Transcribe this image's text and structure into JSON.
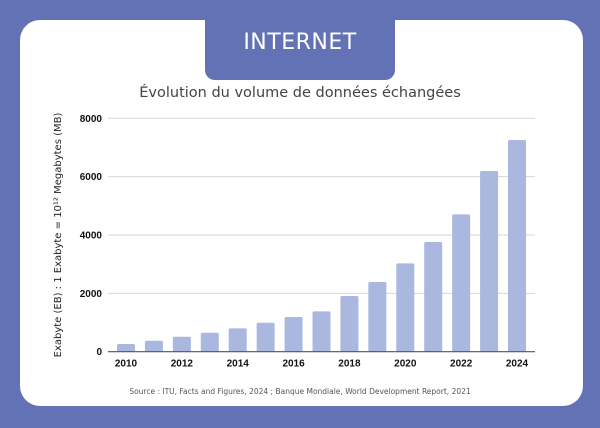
{
  "header": {
    "tab_title": "INTERNET"
  },
  "chart_data": {
    "type": "bar",
    "title": "Évolution du volume de données échangées",
    "ylabel": "Exabyte (EB) : 1 Exabyte = 10¹² Megabytes (MB)",
    "xlabel": "",
    "categories": [
      "2010",
      "2011",
      "2012",
      "2013",
      "2014",
      "2015",
      "2016",
      "2017",
      "2018",
      "2019",
      "2020",
      "2021",
      "2022",
      "2023",
      "2024"
    ],
    "x_tick_labels": [
      "2010",
      "2012",
      "2014",
      "2016",
      "2018",
      "2020",
      "2022",
      "2024"
    ],
    "values": [
      263,
      377,
      514,
      651,
      800,
      994,
      1189,
      1383,
      1909,
      2389,
      3029,
      3760,
      4709,
      6194,
      7257
    ],
    "ylim": [
      0,
      8000
    ],
    "y_ticks": [
      0,
      2000,
      4000,
      6000,
      8000
    ],
    "grid": true,
    "bar_color": "#aab8df"
  },
  "footer": {
    "source": "Source : ITU, Facts and Figures, 2024 ; Banque Mondiale, World Development Report, 2021"
  }
}
